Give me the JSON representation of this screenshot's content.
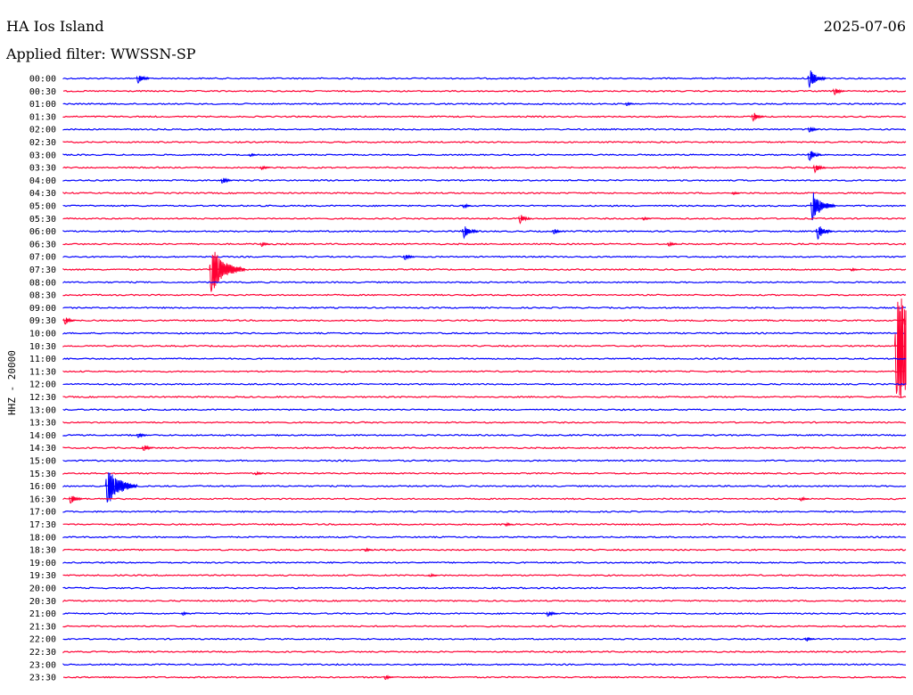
{
  "header": {
    "station": "HA Ios Island",
    "date": "2025-07-06",
    "filter": "Applied filter: WWSSN-SP"
  },
  "chart_data": {
    "type": "line",
    "title": "HA Ios Island",
    "date": "2025-07-06",
    "filter": "WWSSN-SP",
    "ylabel": "HHZ - 20000",
    "xlabel": "",
    "trace_colors": [
      "#0000ff",
      "#ff0033"
    ],
    "row_labels": [
      "00:00",
      "00:30",
      "01:00",
      "01:30",
      "02:00",
      "02:30",
      "03:00",
      "03:30",
      "04:00",
      "04:30",
      "05:00",
      "05:30",
      "06:00",
      "06:30",
      "07:00",
      "07:30",
      "08:00",
      "08:30",
      "09:00",
      "09:30",
      "10:00",
      "10:30",
      "11:00",
      "11:30",
      "12:00",
      "12:30",
      "13:00",
      "13:30",
      "14:00",
      "14:30",
      "15:00",
      "15:30",
      "16:00",
      "16:30",
      "17:00",
      "17:30",
      "18:00",
      "18:30",
      "19:00",
      "19:30",
      "20:00",
      "20:30",
      "21:00",
      "21:30",
      "22:00",
      "22:30",
      "23:00",
      "23:30"
    ],
    "row_minutes": 30,
    "events": [
      {
        "row": 0,
        "minute": 2.6,
        "amplitude": 0.9
      },
      {
        "row": 0,
        "minute": 26.5,
        "amplitude": 1.6
      },
      {
        "row": 1,
        "minute": 27.4,
        "amplitude": 0.7
      },
      {
        "row": 2,
        "minute": 20.0,
        "amplitude": 0.3
      },
      {
        "row": 3,
        "minute": 24.5,
        "amplitude": 0.8
      },
      {
        "row": 4,
        "minute": 26.5,
        "amplitude": 0.6
      },
      {
        "row": 6,
        "minute": 6.6,
        "amplitude": 0.3
      },
      {
        "row": 6,
        "minute": 26.5,
        "amplitude": 1.0
      },
      {
        "row": 7,
        "minute": 7.0,
        "amplitude": 0.4
      },
      {
        "row": 7,
        "minute": 26.7,
        "amplitude": 0.8
      },
      {
        "row": 8,
        "minute": 5.6,
        "amplitude": 0.6
      },
      {
        "row": 9,
        "minute": 23.8,
        "amplitude": 0.3
      },
      {
        "row": 10,
        "minute": 26.6,
        "amplitude": 2.5
      },
      {
        "row": 10,
        "minute": 14.2,
        "amplitude": 0.4
      },
      {
        "row": 11,
        "minute": 16.2,
        "amplitude": 0.8
      },
      {
        "row": 11,
        "minute": 20.6,
        "amplitude": 0.3
      },
      {
        "row": 12,
        "minute": 14.2,
        "amplitude": 1.2
      },
      {
        "row": 12,
        "minute": 26.8,
        "amplitude": 1.3
      },
      {
        "row": 12,
        "minute": 17.4,
        "amplitude": 0.5
      },
      {
        "row": 13,
        "minute": 7.0,
        "amplitude": 0.4
      },
      {
        "row": 13,
        "minute": 21.5,
        "amplitude": 0.4
      },
      {
        "row": 14,
        "minute": 12.1,
        "amplitude": 0.6
      },
      {
        "row": 15,
        "minute": 5.2,
        "amplitude": 4.0
      },
      {
        "row": 15,
        "minute": 28.0,
        "amplitude": 0.3
      },
      {
        "row": 19,
        "minute": 0.0,
        "amplitude": 0.7
      },
      {
        "row": 19,
        "minute": 29.9,
        "amplitude": 0.9
      },
      {
        "row": 21,
        "minute": 29.6,
        "amplitude": 10.0
      },
      {
        "row": 28,
        "minute": 2.6,
        "amplitude": 0.5
      },
      {
        "row": 29,
        "minute": 2.8,
        "amplitude": 0.6
      },
      {
        "row": 31,
        "minute": 6.8,
        "amplitude": 0.3
      },
      {
        "row": 32,
        "minute": 1.5,
        "amplitude": 3.5
      },
      {
        "row": 33,
        "minute": 0.2,
        "amplitude": 0.9
      },
      {
        "row": 33,
        "minute": 26.2,
        "amplitude": 0.4
      },
      {
        "row": 35,
        "minute": 15.7,
        "amplitude": 0.3
      },
      {
        "row": 37,
        "minute": 10.7,
        "amplitude": 0.3
      },
      {
        "row": 39,
        "minute": 13.0,
        "amplitude": 0.3
      },
      {
        "row": 42,
        "minute": 4.2,
        "amplitude": 0.3
      },
      {
        "row": 42,
        "minute": 17.2,
        "amplitude": 0.6
      },
      {
        "row": 44,
        "minute": 26.4,
        "amplitude": 0.4
      },
      {
        "row": 47,
        "minute": 11.4,
        "amplitude": 0.4
      }
    ]
  }
}
